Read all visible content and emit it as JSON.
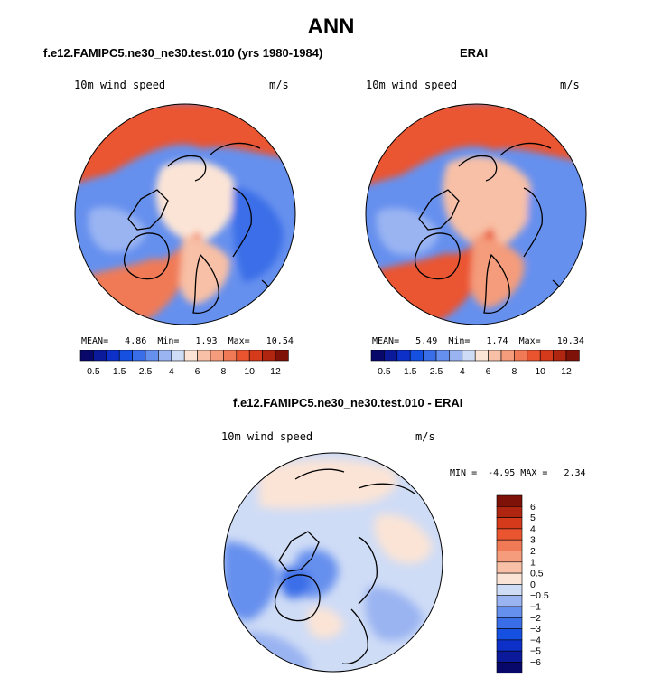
{
  "main_title": "ANN",
  "chart_data": [
    {
      "type": "heatmap",
      "projection": "north-polar-stereographic",
      "title": "f.e12.FAMIPC5.ne30_ne30.test.010 (yrs 1980-1984)",
      "variable": "10m wind speed",
      "units": "m/s",
      "stats": {
        "mean_label": "MEAN=",
        "mean": "4.86",
        "min_label": "Min=",
        "min": "1.93",
        "max_label": "Max=",
        "max": "10.54"
      },
      "levels": [
        0.5,
        1,
        1.5,
        2,
        2.5,
        3,
        4,
        5,
        6,
        7,
        8,
        9,
        10,
        11,
        12
      ],
      "tick_labels": [
        "0.5",
        "1.5",
        "2.5",
        "4",
        "6",
        "8",
        "10",
        "12"
      ]
    },
    {
      "type": "heatmap",
      "projection": "north-polar-stereographic",
      "title": "ERAI",
      "variable": "10m wind speed",
      "units": "m/s",
      "stats": {
        "mean_label": "MEAN=",
        "mean": "5.49",
        "min_label": "Min=",
        "min": "1.74",
        "max_label": "Max=",
        "max": "10.34"
      },
      "levels": [
        0.5,
        1,
        1.5,
        2,
        2.5,
        3,
        4,
        5,
        6,
        7,
        8,
        9,
        10,
        11,
        12
      ],
      "tick_labels": [
        "0.5",
        "1.5",
        "2.5",
        "4",
        "6",
        "8",
        "10",
        "12"
      ]
    },
    {
      "type": "heatmap",
      "projection": "north-polar-stereographic",
      "title": "f.e12.FAMIPC5.ne30_ne30.test.010 - ERAI",
      "variable": "10m wind speed",
      "units": "m/s",
      "stats": {
        "min_label": "MIN =",
        "min": "-4.95",
        "max_label": "MAX =",
        "max": "2.34"
      },
      "levels": [
        -6,
        -5,
        -4,
        -3,
        -2,
        -1,
        -0.5,
        0,
        0.5,
        1,
        2,
        3,
        4,
        5,
        6
      ],
      "tick_labels": [
        "6",
        "5",
        "4",
        "3",
        "2",
        "1",
        "0.5",
        "0",
        "−0.5",
        "−1",
        "−2",
        "−3",
        "−4",
        "−5",
        "−6"
      ]
    }
  ],
  "colors": {
    "scale_16": [
      "#08086b",
      "#0a1a9a",
      "#0c30c8",
      "#1550e0",
      "#3a6ee8",
      "#6690ee",
      "#9ab4f2",
      "#cfdcf6",
      "#fbe4d6",
      "#f8c0a6",
      "#f49c7c",
      "#f07a56",
      "#ea5530",
      "#d53a1a",
      "#b02510",
      "#7e1208"
    ],
    "land_outline": "#000000"
  }
}
